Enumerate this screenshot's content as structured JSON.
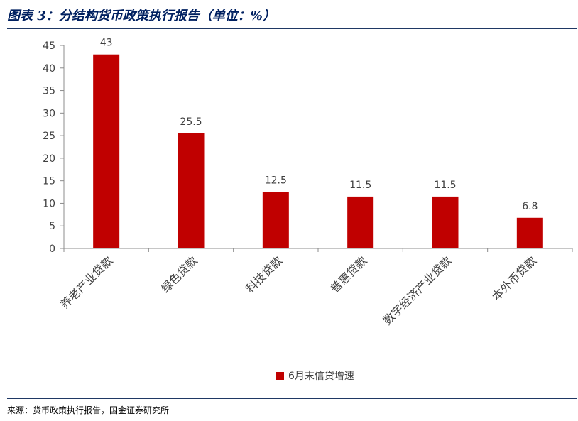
{
  "header": {
    "title": "图表 3：分结构货币政策执行报告（单位：%）"
  },
  "footer": {
    "source": "来源：货币政策执行报告，国金证券研究所"
  },
  "colors": {
    "bar": "#c00000",
    "axis": "#8c8c8c",
    "title": "#002060",
    "text": "#404040"
  },
  "chart_data": {
    "type": "bar",
    "title": "",
    "xlabel": "",
    "ylabel": "",
    "categories": [
      "养老产业贷款",
      "绿色贷款",
      "科技贷款",
      "普惠贷款",
      "数字经济产业贷款",
      "本外币贷款"
    ],
    "series": [
      {
        "name": "6月末信贷增速",
        "values": [
          43,
          25.5,
          12.5,
          11.5,
          11.5,
          6.8
        ]
      }
    ],
    "data_labels": [
      "43",
      "25.5",
      "12.5",
      "11.5",
      "11.5",
      "6.8"
    ],
    "ylim": [
      0,
      45
    ],
    "yticks": [
      "0",
      "5",
      "10",
      "15",
      "20",
      "25",
      "30",
      "35",
      "40",
      "45"
    ],
    "grid": false,
    "legend_position": "bottom"
  }
}
